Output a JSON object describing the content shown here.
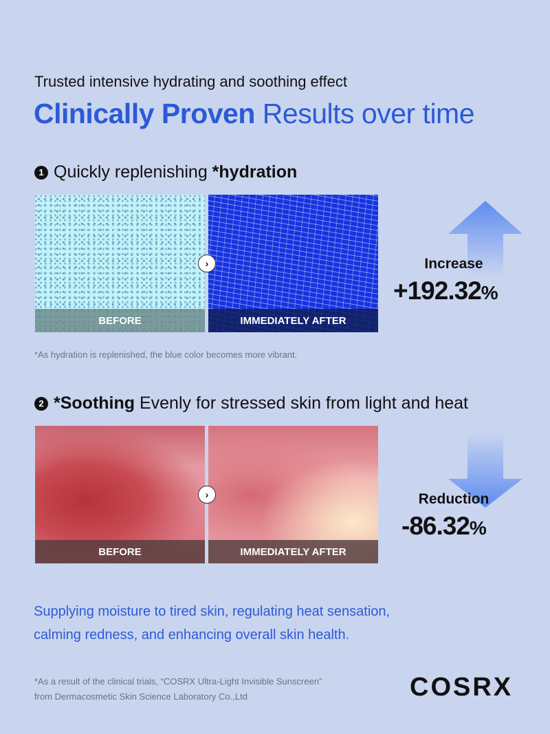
{
  "subtitle": "Trusted intensive hydrating and soothing effect",
  "title": {
    "bold": "Clinically Proven",
    "rest": " Results over time"
  },
  "sections": [
    {
      "number": "1",
      "text_pre": "Quickly replenishing ",
      "text_bold": "*hydration",
      "text_post": "",
      "before_label": "BEFORE",
      "after_label": "IMMEDIATELY AFTER",
      "stat_label": "Increase",
      "stat_value": "+192.32",
      "stat_unit": "%",
      "arrow": "arrow-up-icon",
      "note": "*As hydration is replenished, the blue color becomes more vibrant."
    },
    {
      "number": "2",
      "text_pre": "",
      "text_bold": "*Soothing",
      "text_post": " Evenly for stressed skin from light and heat",
      "before_label": "BEFORE",
      "after_label": "IMMEDIATELY AFTER",
      "stat_label": "Reduction",
      "stat_value": "-86.32",
      "stat_unit": "%",
      "arrow": "arrow-down-icon"
    }
  ],
  "summary": [
    "Supplying moisture to tired skin, regulating heat sensation,",
    "calming redness, and enhancing overall skin health."
  ],
  "footnote": [
    "*As a result of the clinical trials, “COSRX Ultra-Light Invisible Sunscreen”",
    "from Dermacosmetic Skin Science Laboratory Co.,Ltd"
  ],
  "brand": "COSRX",
  "colors": {
    "background": "#c9d5ef",
    "accent": "#2c5ad6",
    "arrow": "#6f97f0"
  }
}
